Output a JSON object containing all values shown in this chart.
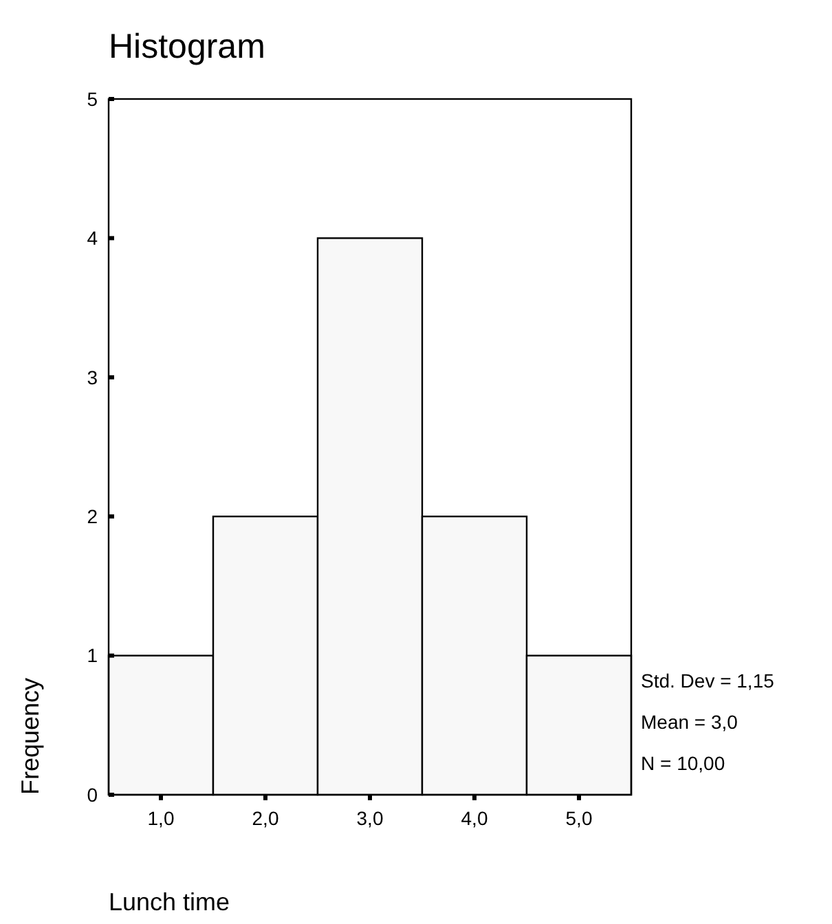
{
  "chart_data": {
    "type": "histogram",
    "title": "Histogram",
    "xlabel": "Lunch time",
    "ylabel": "Frequency",
    "bins": [
      0.5,
      1.5,
      2.5,
      3.5,
      4.5,
      5.5
    ],
    "values": [
      1,
      2,
      4,
      2,
      1
    ],
    "color": "#f8f8f8",
    "xlim": [
      0.5,
      5.5
    ],
    "xticks": [
      {
        "value": 1,
        "label": "1,0"
      },
      {
        "value": 2,
        "label": "2,0"
      },
      {
        "value": 3,
        "label": "3,0"
      },
      {
        "value": 4,
        "label": "4,0"
      },
      {
        "value": 5,
        "label": "5,0"
      }
    ],
    "ylim": [
      0,
      5
    ],
    "yticks": [
      0,
      1,
      2,
      3,
      4,
      5
    ],
    "annotations": [
      "Std. Dev = 1,15",
      "Mean = 3,0",
      "N = 10,00"
    ]
  }
}
